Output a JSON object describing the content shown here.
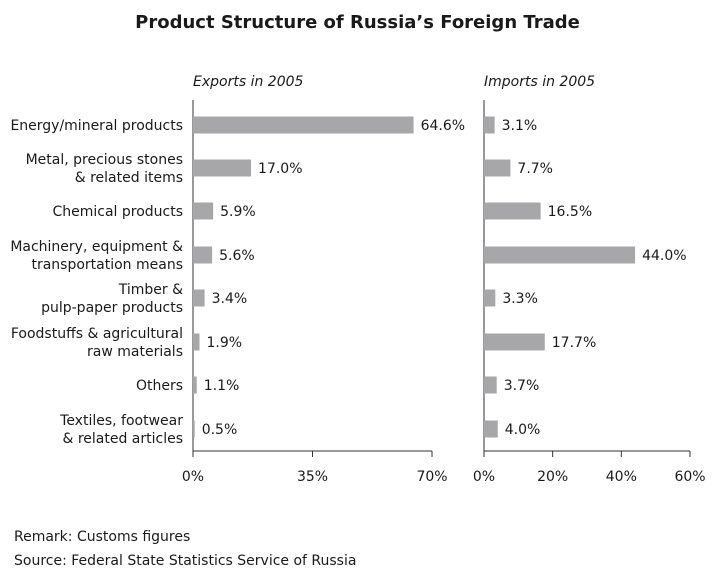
{
  "title": "Product Structure of Russia’s Foreign Trade",
  "remark": "Remark: Customs figures",
  "source": "Source: Federal State Statistics Service of Russia",
  "colors": {
    "bar": "#a7a7a9",
    "axis": "#333333",
    "text": "#1a1a1a"
  },
  "chart_data": [
    {
      "type": "bar",
      "orientation": "horizontal",
      "title": "Exports in 2005",
      "categories": [
        "Energy/mineral products",
        "Metal, precious stones & related items",
        "Chemical products",
        "Machinery, equipment & transportation means",
        "Timber & pulp-paper products",
        "Foodstuffs & agricultural raw materials",
        "Others",
        "Textiles, footwear & related articles"
      ],
      "category_lines": [
        [
          "Energy/mineral products"
        ],
        [
          "Metal, precious stones",
          "& related items"
        ],
        [
          "Chemical products"
        ],
        [
          "Machinery, equipment &",
          "transportation means"
        ],
        [
          "Timber &",
          "pulp-paper products"
        ],
        [
          "Foodstuffs & agricultural",
          "raw materials"
        ],
        [
          "Others"
        ],
        [
          "Textiles, footwear",
          "& related articles"
        ]
      ],
      "values": [
        64.6,
        17.0,
        5.9,
        5.6,
        3.4,
        1.9,
        1.1,
        0.5
      ],
      "value_labels": [
        "64.6%",
        "17.0%",
        "5.9%",
        "5.6%",
        "3.4%",
        "1.9%",
        "1.1%",
        "0.5%"
      ],
      "xlim": [
        0,
        70
      ],
      "ticks": [
        0,
        35,
        70
      ],
      "tick_labels": [
        "0%",
        "35%",
        "70%"
      ]
    },
    {
      "type": "bar",
      "orientation": "horizontal",
      "title": "Imports in 2005",
      "values": [
        3.1,
        7.7,
        16.5,
        44.0,
        3.3,
        17.7,
        3.7,
        4.0
      ],
      "value_labels": [
        "3.1%",
        "7.7%",
        "16.5%",
        "44.0%",
        "3.3%",
        "17.7%",
        "3.7%",
        "4.0%"
      ],
      "xlim": [
        0,
        60
      ],
      "ticks": [
        0,
        20,
        40,
        60
      ],
      "tick_labels": [
        "0%",
        "20%",
        "40%",
        "60%"
      ]
    }
  ]
}
